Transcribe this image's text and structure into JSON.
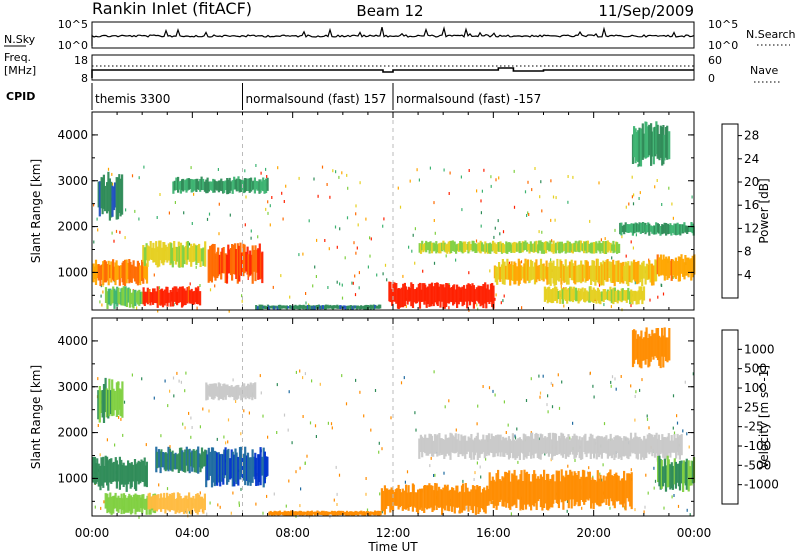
{
  "header": {
    "station": "Rankin Inlet (fitACF)",
    "beam": "Beam 12",
    "date": "11/Sep/2009"
  },
  "nsky_panel": {
    "label": "N.Sky",
    "y_ticks": [
      "10^5",
      "10^0"
    ],
    "right_ticks": [
      "10^5",
      "10^0"
    ],
    "right_label": "N.Search"
  },
  "freq_panel": {
    "label_top": "Freq.",
    "label_unit": "[MHz]",
    "y_ticks": [
      "18",
      "8"
    ],
    "right_ticks": [
      "60",
      "0"
    ],
    "right_label": "Nave"
  },
  "cpid_panel": {
    "label": "CPID",
    "segments": [
      {
        "start": 0,
        "end": 6,
        "text": "themis 3300"
      },
      {
        "start": 6,
        "end": 12,
        "text": "normalsound (fast) 157"
      },
      {
        "start": 12,
        "end": 24,
        "text": "normalsound (fast) -157"
      }
    ]
  },
  "colors": {
    "power": [
      "#0000ff",
      "#2050c0",
      "#2e8b57",
      "#3cb371",
      "#7fd040",
      "#e6d020",
      "#ffa500",
      "#ff6a00",
      "#ff2000"
    ],
    "velocity": [
      "#ff0000",
      "#ff5500",
      "#ff8c00",
      "#ffbb40",
      "#c8c8c8",
      "#7fd040",
      "#2e8b57",
      "#1f6aa0",
      "#0033cc"
    ]
  },
  "chart_data": [
    {
      "type": "heatmap",
      "panel": "power",
      "ylabel": "Slant Range [km]",
      "xlabel": "Time UT",
      "x_ticks": [
        "00:00",
        "04:00",
        "08:00",
        "12:00",
        "16:00",
        "20:00",
        "00:00"
      ],
      "x_range_hours": [
        0,
        24
      ],
      "ylim": [
        180,
        4500
      ],
      "y_ticks": [
        1000,
        2000,
        3000,
        4000
      ],
      "colorbar": {
        "label": "Power [dB]",
        "ticks": [
          4,
          8,
          12,
          16,
          20,
          24,
          28
        ],
        "range": [
          0,
          30
        ]
      },
      "regions": [
        {
          "t0": 0.0,
          "t1": 2.2,
          "r0": 700,
          "r1": 1300,
          "value": 24
        },
        {
          "t0": 0.5,
          "t1": 2.0,
          "r0": 200,
          "r1": 700,
          "value": 14
        },
        {
          "t0": 2.0,
          "t1": 4.3,
          "r0": 220,
          "r1": 700,
          "value": 28
        },
        {
          "t0": 4.6,
          "t1": 6.8,
          "r0": 750,
          "r1": 1650,
          "value": 26
        },
        {
          "t0": 2.0,
          "t1": 4.5,
          "r0": 1100,
          "r1": 1700,
          "value": 18
        },
        {
          "t0": 3.2,
          "t1": 7.0,
          "r0": 2700,
          "r1": 3100,
          "value": 10
        },
        {
          "t0": 0.2,
          "t1": 1.2,
          "r0": 2100,
          "r1": 3200,
          "value": 8
        },
        {
          "t0": 6.5,
          "t1": 11.5,
          "r0": 180,
          "r1": 300,
          "value": 8
        },
        {
          "t0": 11.8,
          "t1": 16.0,
          "r0": 200,
          "r1": 800,
          "value": 29
        },
        {
          "t0": 13.0,
          "t1": 21.0,
          "r0": 1400,
          "r1": 1700,
          "value": 16
        },
        {
          "t0": 16.0,
          "t1": 22.5,
          "r0": 700,
          "r1": 1300,
          "value": 20
        },
        {
          "t0": 18.0,
          "t1": 22.0,
          "r0": 300,
          "r1": 700,
          "value": 18
        },
        {
          "t0": 21.0,
          "t1": 24.0,
          "r0": 1800,
          "r1": 2100,
          "value": 10
        },
        {
          "t0": 22.5,
          "t1": 24.0,
          "r0": 800,
          "r1": 1400,
          "value": 22
        },
        {
          "t0": 21.5,
          "t1": 23.0,
          "r0": 3300,
          "r1": 4300,
          "value": 10
        }
      ]
    },
    {
      "type": "heatmap",
      "panel": "velocity",
      "ylabel": "Slant Range [km]",
      "xlabel": "Time UT",
      "x_ticks": [
        "00:00",
        "04:00",
        "08:00",
        "12:00",
        "16:00",
        "20:00",
        "00:00"
      ],
      "x_range_hours": [
        0,
        24
      ],
      "ylim": [
        180,
        4500
      ],
      "y_ticks": [
        1000,
        2000,
        3000,
        4000
      ],
      "colorbar": {
        "label": "Velocity [m s^-1]",
        "ticks": [
          1000,
          500,
          100,
          25,
          -25,
          -100,
          -500,
          -1000
        ]
      },
      "regions": [
        {
          "t0": 0.0,
          "t1": 2.2,
          "r0": 700,
          "r1": 1500,
          "value": 300
        },
        {
          "t0": 0.5,
          "t1": 2.5,
          "r0": 200,
          "r1": 700,
          "value": 60
        },
        {
          "t0": 2.2,
          "t1": 4.5,
          "r0": 200,
          "r1": 700,
          "value": -60
        },
        {
          "t0": 4.5,
          "t1": 7.0,
          "r0": 800,
          "r1": 1700,
          "value": 1000
        },
        {
          "t0": 2.5,
          "t1": 4.5,
          "r0": 1100,
          "r1": 1700,
          "value": 500
        },
        {
          "t0": 4.5,
          "t1": 6.5,
          "r0": 2700,
          "r1": 3100,
          "value": 0
        },
        {
          "t0": 0.2,
          "t1": 1.2,
          "r0": 2200,
          "r1": 3200,
          "value": 100
        },
        {
          "t0": 7.0,
          "t1": 11.5,
          "r0": 180,
          "r1": 300,
          "value": -300
        },
        {
          "t0": 11.5,
          "t1": 15.8,
          "r0": 200,
          "r1": 900,
          "value": -300
        },
        {
          "t0": 15.8,
          "t1": 21.5,
          "r0": 300,
          "r1": 1200,
          "value": -300
        },
        {
          "t0": 13.0,
          "t1": 23.5,
          "r0": 1400,
          "r1": 2000,
          "value": 0
        },
        {
          "t0": 21.5,
          "t1": 23.0,
          "r0": 3400,
          "r1": 4300,
          "value": -300
        },
        {
          "t0": 22.5,
          "t1": 24.0,
          "r0": 700,
          "r1": 1500,
          "value": 100
        }
      ]
    }
  ]
}
